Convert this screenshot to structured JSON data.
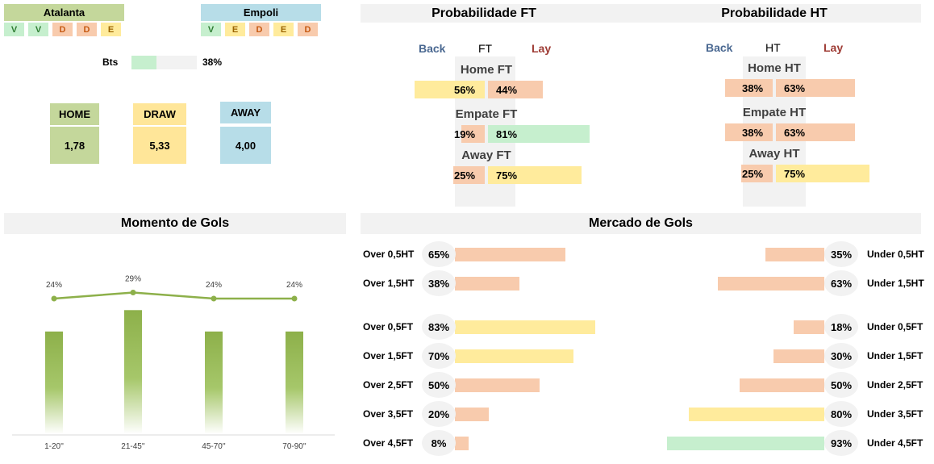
{
  "teams": {
    "home": {
      "name": "Atalanta",
      "color": "#c4d79b",
      "form": [
        "V",
        "V",
        "D",
        "D",
        "E"
      ]
    },
    "away": {
      "name": "Empoli",
      "color": "#b7dde8",
      "form": [
        "V",
        "E",
        "D",
        "E",
        "D"
      ]
    }
  },
  "bts": {
    "label": "Bts",
    "value": "38%",
    "fraction": 0.38
  },
  "odds": {
    "home": {
      "label": "HOME",
      "value": "1,78"
    },
    "draw": {
      "label": "DRAW",
      "value": "5,33"
    },
    "away": {
      "label": "AWAY",
      "value": "4,00"
    }
  },
  "prob_ft": {
    "title": "Probabilidade FT",
    "back": "Back",
    "mid": "FT",
    "lay": "Lay",
    "rows": [
      {
        "label": "Home FT",
        "back": "56%",
        "lay": "44%",
        "back_fraction": 0.56,
        "lay_fraction": 0.44
      },
      {
        "label": "Empate FT",
        "back": "19%",
        "lay": "81%",
        "back_fraction": 0.19,
        "lay_fraction": 0.81
      },
      {
        "label": "Away FT",
        "back": "25%",
        "lay": "75%",
        "back_fraction": 0.25,
        "lay_fraction": 0.75
      }
    ]
  },
  "prob_ht": {
    "title": "Probabilidade HT",
    "back": "Back",
    "mid": "HT",
    "lay": "Lay",
    "rows": [
      {
        "label": "Home HT",
        "back": "38%",
        "lay": "63%",
        "back_fraction": 0.38,
        "lay_fraction": 0.63
      },
      {
        "label": "Empate HT",
        "back": "38%",
        "lay": "63%",
        "back_fraction": 0.38,
        "lay_fraction": 0.63
      },
      {
        "label": "Away HT",
        "back": "25%",
        "lay": "75%",
        "back_fraction": 0.25,
        "lay_fraction": 0.75
      }
    ]
  },
  "momento": {
    "title": "Momento de Gols",
    "chart_data": {
      "type": "bar",
      "categories": [
        "1-20''",
        "21-45''",
        "45-70''",
        "70-90''"
      ],
      "values": [
        24,
        29,
        24,
        24
      ],
      "labels": [
        "24%",
        "29%",
        "24%",
        "24%"
      ],
      "line_values": [
        24,
        29,
        24,
        24
      ]
    }
  },
  "mercado": {
    "title": "Mercado de Gols",
    "rows": [
      {
        "over_label": "Over 0,5HT",
        "over": "65%",
        "over_value": 65,
        "under_label": "Under 0,5HT",
        "under": "35%",
        "under_value": 35
      },
      {
        "over_label": "Over 1,5HT",
        "over": "38%",
        "over_value": 38,
        "under_label": "Under 1,5HT",
        "under": "63%",
        "under_value": 63
      },
      {
        "over_label": "Over 0,5FT",
        "over": "83%",
        "over_value": 83,
        "under_label": "Under 0,5FT",
        "under": "18%",
        "under_value": 18
      },
      {
        "over_label": "Over 1,5FT",
        "over": "70%",
        "over_value": 70,
        "under_label": "Under 1,5FT",
        "under": "30%",
        "under_value": 30
      },
      {
        "over_label": "Over 2,5FT",
        "over": "50%",
        "over_value": 50,
        "under_label": "Under 2,5FT",
        "under": "50%",
        "under_value": 50
      },
      {
        "over_label": "Over 3,5FT",
        "over": "20%",
        "over_value": 20,
        "under_label": "Under 3,5FT",
        "under": "80%",
        "under_value": 80
      },
      {
        "over_label": "Over 4,5FT",
        "over": "8%",
        "over_value": 8,
        "under_label": "Under 4,5FT",
        "under": "93%",
        "under_value": 93
      }
    ]
  },
  "colors": {
    "green": "#c6efce",
    "yellow": "#ffeb9c",
    "orange": "#f8cbad",
    "back_blue": "#4a6891",
    "lay_red": "#9e3b34",
    "line_green": "#8db04a",
    "home_odds": "#c4d79b",
    "draw_odds": "#ffe699",
    "away_odds": "#b7dde8"
  }
}
